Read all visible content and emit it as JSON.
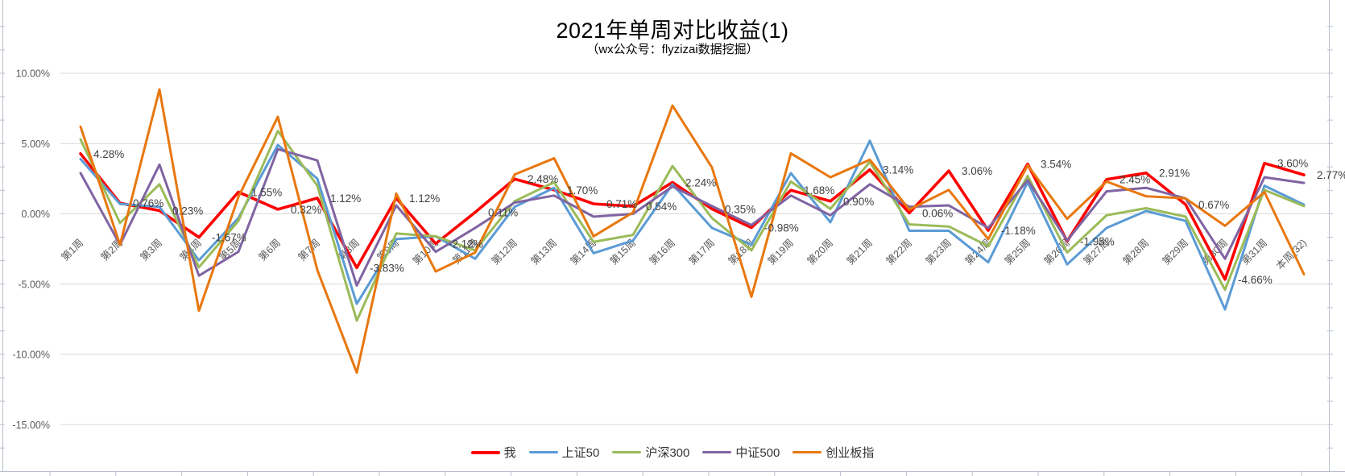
{
  "title": "2021年单周对比收益(1)",
  "subtitle": "（wx公众号：flyzizai数据挖掘）",
  "colors": {
    "gridline": "#d9d9d9",
    "axis_text": "#595959",
    "data_label": "#404040",
    "frame": "#b9c0cc",
    "background": "#ffffff"
  },
  "chart_data": {
    "type": "line",
    "title": "2021年单周对比收益(1)",
    "subtitle": "（wx公众号：flyzizai数据挖掘）",
    "legend_position": "bottom",
    "grid": true,
    "ylim": [
      -15,
      10
    ],
    "label_format": "0.00%",
    "categories": [
      "第1周",
      "第2周",
      "第3周",
      "第4周",
      "第5周",
      "第6周",
      "第7周",
      "第8周",
      "第9周",
      "第10周",
      "第11周",
      "第12周",
      "第13周",
      "第14周",
      "第15周",
      "第16周",
      "第17周",
      "第18周",
      "第19周",
      "第20周",
      "第21周",
      "第22周",
      "第23周",
      "第24周",
      "第25周",
      "第26周",
      "第27周",
      "第28周",
      "第29周",
      "第30周",
      "第31周",
      "本周(32)"
    ],
    "y_axis": {
      "tick_labels": [
        "10.00%",
        "5.00%",
        "0.00%",
        "-5.00%",
        "-10.00%",
        "-15.00%"
      ],
      "tick_values": [
        10,
        5,
        0,
        -5,
        -10,
        -15
      ]
    },
    "series": [
      {
        "name": "我",
        "color": "#ff0000",
        "stroke_width": 3.6,
        "data_labels": true,
        "values": [
          4.28,
          0.76,
          0.23,
          -1.67,
          1.55,
          0.32,
          1.12,
          -3.83,
          1.12,
          -2.12,
          0.11,
          2.48,
          1.7,
          0.71,
          0.54,
          2.24,
          0.35,
          -0.98,
          1.68,
          0.9,
          3.14,
          0.06,
          3.06,
          -1.18,
          3.54,
          -1.95,
          2.45,
          2.91,
          0.67,
          -4.66,
          3.6,
          2.77
        ]
      },
      {
        "name": "上证50",
        "color": "#5b9bd5",
        "stroke_width": 3,
        "data_labels": false,
        "values": [
          3.9,
          0.7,
          0.5,
          -3.3,
          -0.3,
          4.9,
          2.5,
          -6.4,
          -1.8,
          -1.6,
          -3.2,
          0.5,
          1.85,
          -2.8,
          -1.9,
          2.1,
          -1.0,
          -2.2,
          2.9,
          -0.6,
          5.2,
          -1.2,
          -1.2,
          -3.45,
          2.25,
          -3.6,
          -1.0,
          0.2,
          -0.5,
          -6.8,
          2.0,
          0.65
        ]
      },
      {
        "name": "沪深300",
        "color": "#9bbb59",
        "stroke_width": 3,
        "data_labels": false,
        "values": [
          5.3,
          -0.65,
          2.1,
          -3.8,
          -0.5,
          5.9,
          2.0,
          -7.6,
          -1.4,
          -1.6,
          -2.6,
          0.9,
          2.25,
          -2.0,
          -1.5,
          3.4,
          -0.3,
          -2.6,
          2.3,
          0.35,
          3.7,
          -0.75,
          -0.9,
          -2.3,
          2.7,
          -2.75,
          -0.1,
          0.4,
          -0.2,
          -5.4,
          1.7,
          0.55
        ]
      },
      {
        "name": "中证500",
        "color": "#8064a2",
        "stroke_width": 3,
        "data_labels": false,
        "values": [
          2.9,
          -2.2,
          3.5,
          -4.4,
          -2.7,
          4.6,
          3.8,
          -5.1,
          0.6,
          -2.7,
          -1.0,
          0.8,
          1.3,
          -0.2,
          0.0,
          1.95,
          0.55,
          -0.8,
          1.3,
          -0.1,
          2.1,
          0.5,
          0.6,
          -1.0,
          2.4,
          -1.9,
          1.6,
          1.85,
          1.1,
          -3.2,
          2.6,
          2.2
        ]
      },
      {
        "name": "创业板指",
        "color": "#e8770e",
        "stroke_width": 3,
        "data_labels": false,
        "values": [
          6.2,
          -2.2,
          8.85,
          -6.9,
          1.2,
          6.9,
          -4.0,
          -11.3,
          1.44,
          -4.1,
          -2.75,
          2.8,
          3.95,
          -1.6,
          0.1,
          7.7,
          3.3,
          -5.9,
          4.3,
          2.6,
          3.85,
          0.3,
          1.7,
          -1.8,
          3.45,
          -0.35,
          2.3,
          1.25,
          1.1,
          -0.85,
          1.55,
          -4.3
        ]
      }
    ]
  }
}
